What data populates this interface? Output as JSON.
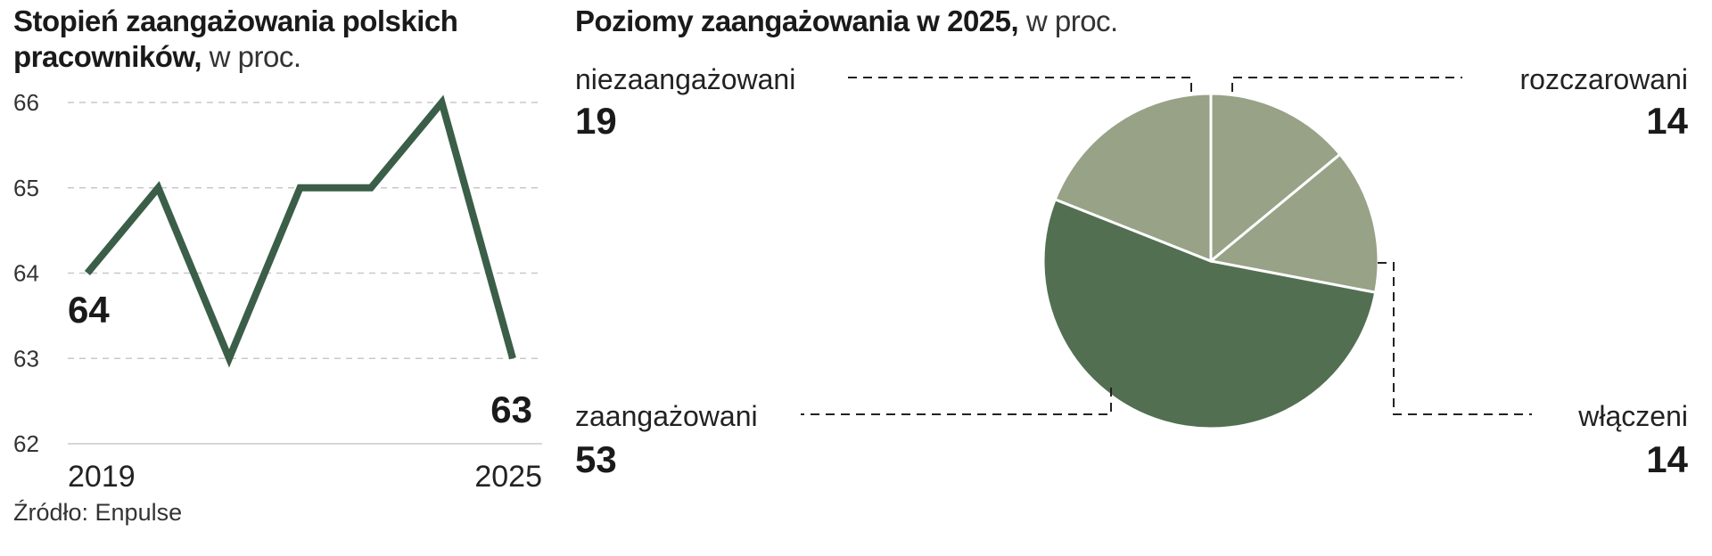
{
  "left_chart": {
    "title_bold": "Stopień zaangażowania polskich pracowników,",
    "title_light": " w proc."
  },
  "right_chart": {
    "title_bold": "Poziomy zaangażowania w 2025,",
    "title_light": " w proc."
  },
  "source": "Źródło: Enpulse",
  "colors": {
    "line": "#3b5e48",
    "grid": "#c8c8c8",
    "pie_light": "#97a287",
    "pie_dark": "#526f52",
    "leader": "#222222"
  },
  "chart_data": [
    {
      "type": "line",
      "x": [
        2019,
        2020,
        2021,
        2022,
        2023,
        2024,
        2025
      ],
      "series": [
        {
          "values": [
            64,
            65,
            63,
            65,
            65,
            66,
            63
          ]
        }
      ],
      "y_ticks": [
        "62",
        "63",
        "64",
        "65",
        "66"
      ],
      "ylim": [
        62,
        66
      ],
      "x_tick_labels": [
        "2019",
        "2025"
      ],
      "start_label": "64",
      "end_label": "63",
      "grid": "horizontal dashed"
    },
    {
      "type": "pie",
      "slices": [
        {
          "label": "rozczarowani",
          "value": 14,
          "value_label": "14",
          "color_key": "pie_light"
        },
        {
          "label": "włączeni",
          "value": 14,
          "value_label": "14",
          "color_key": "pie_light"
        },
        {
          "label": "zaangażowani",
          "value": 53,
          "value_label": "53",
          "color_key": "pie_dark"
        },
        {
          "label": "niezaangażowani",
          "value": 19,
          "value_label": "19",
          "color_key": "pie_light"
        }
      ]
    }
  ]
}
